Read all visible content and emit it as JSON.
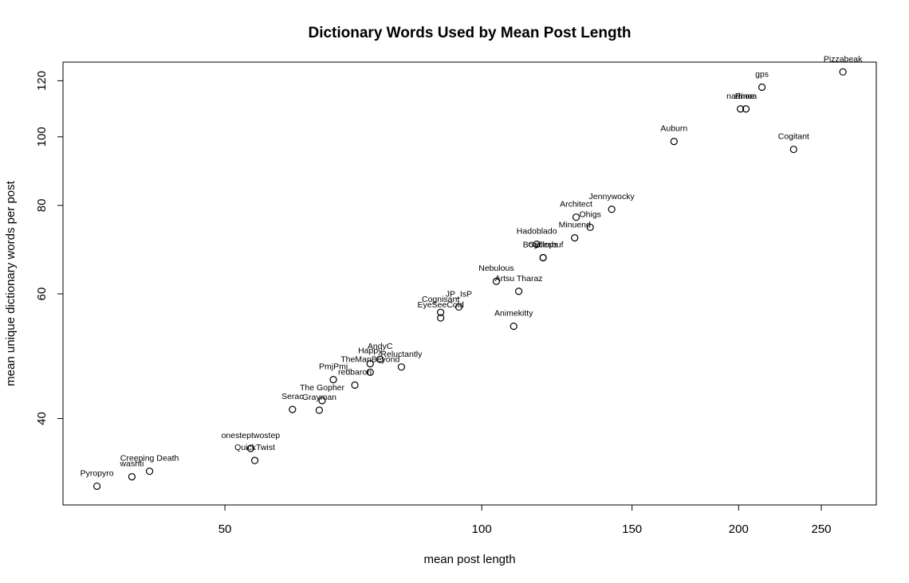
{
  "chart_data": {
    "type": "scatter",
    "title": "Dictionary Words Used by Mean Post Length",
    "xlabel": "mean post length",
    "ylabel": "mean unique dictionary words per post",
    "x_scale": "log",
    "y_scale": "log",
    "xlim": [
      32.3,
      290
    ],
    "ylim": [
      30.2,
      127.5
    ],
    "x_ticks": [
      50,
      100,
      150,
      200,
      250
    ],
    "y_ticks": [
      40,
      60,
      80,
      100,
      120
    ],
    "grid": false,
    "legend": "none",
    "points": [
      {
        "label": "Pizzabeak",
        "x": 265,
        "y": 123.5
      },
      {
        "label": "gps",
        "x": 213,
        "y": 117.5
      },
      {
        "label": "nadnoe",
        "x": 201,
        "y": 109.5
      },
      {
        "label": "Rinoa",
        "x": 204,
        "y": 109.5
      },
      {
        "label": "Auburn",
        "x": 168,
        "y": 98.5
      },
      {
        "label": "Cogitant",
        "x": 232,
        "y": 96
      },
      {
        "label": "Jennywocky",
        "x": 142,
        "y": 79
      },
      {
        "label": "Architect",
        "x": 129,
        "y": 77
      },
      {
        "label": "Ohigs",
        "x": 134,
        "y": 74.5
      },
      {
        "label": "Minuend",
        "x": 128.5,
        "y": 72
      },
      {
        "label": "Hadoblado",
        "x": 116,
        "y": 70.5
      },
      {
        "label": "Bowllesbuf",
        "x": 118,
        "y": 67.5
      },
      {
        "label": "Cyclops",
        "x": 118,
        "y": 67.5
      },
      {
        "label": "Nebulous",
        "x": 104,
        "y": 62.5
      },
      {
        "label": "Artsu Tharaz",
        "x": 110.5,
        "y": 60.5
      },
      {
        "label": "JP_IsP",
        "x": 94,
        "y": 57.5
      },
      {
        "label": "Cognisant",
        "x": 89.5,
        "y": 56.5
      },
      {
        "label": "EyeSeeCold",
        "x": 89.5,
        "y": 55.5
      },
      {
        "label": "Animekitty",
        "x": 109,
        "y": 54
      },
      {
        "label": "AndyC",
        "x": 76,
        "y": 48.5
      },
      {
        "label": "Happy",
        "x": 74,
        "y": 47.8
      },
      {
        "label": "Reluctantly",
        "x": 80.5,
        "y": 47.3
      },
      {
        "label": "TheManBeyond",
        "x": 74,
        "y": 46.5
      },
      {
        "label": "PmjPmj",
        "x": 67,
        "y": 45.4
      },
      {
        "label": "redbaron",
        "x": 71,
        "y": 44.6
      },
      {
        "label": "The Gopher",
        "x": 65,
        "y": 42.4
      },
      {
        "label": "Serac",
        "x": 60,
        "y": 41.2
      },
      {
        "label": "Grayman",
        "x": 64.5,
        "y": 41.1
      },
      {
        "label": "onesteptwostep",
        "x": 53.6,
        "y": 36.3
      },
      {
        "label": "QuickTwist",
        "x": 54.2,
        "y": 34.9
      },
      {
        "label": "Creeping Death",
        "x": 40.8,
        "y": 33.7
      },
      {
        "label": "washti",
        "x": 38.9,
        "y": 33.1
      },
      {
        "label": "Pyropyro",
        "x": 35.4,
        "y": 32.1
      }
    ]
  }
}
